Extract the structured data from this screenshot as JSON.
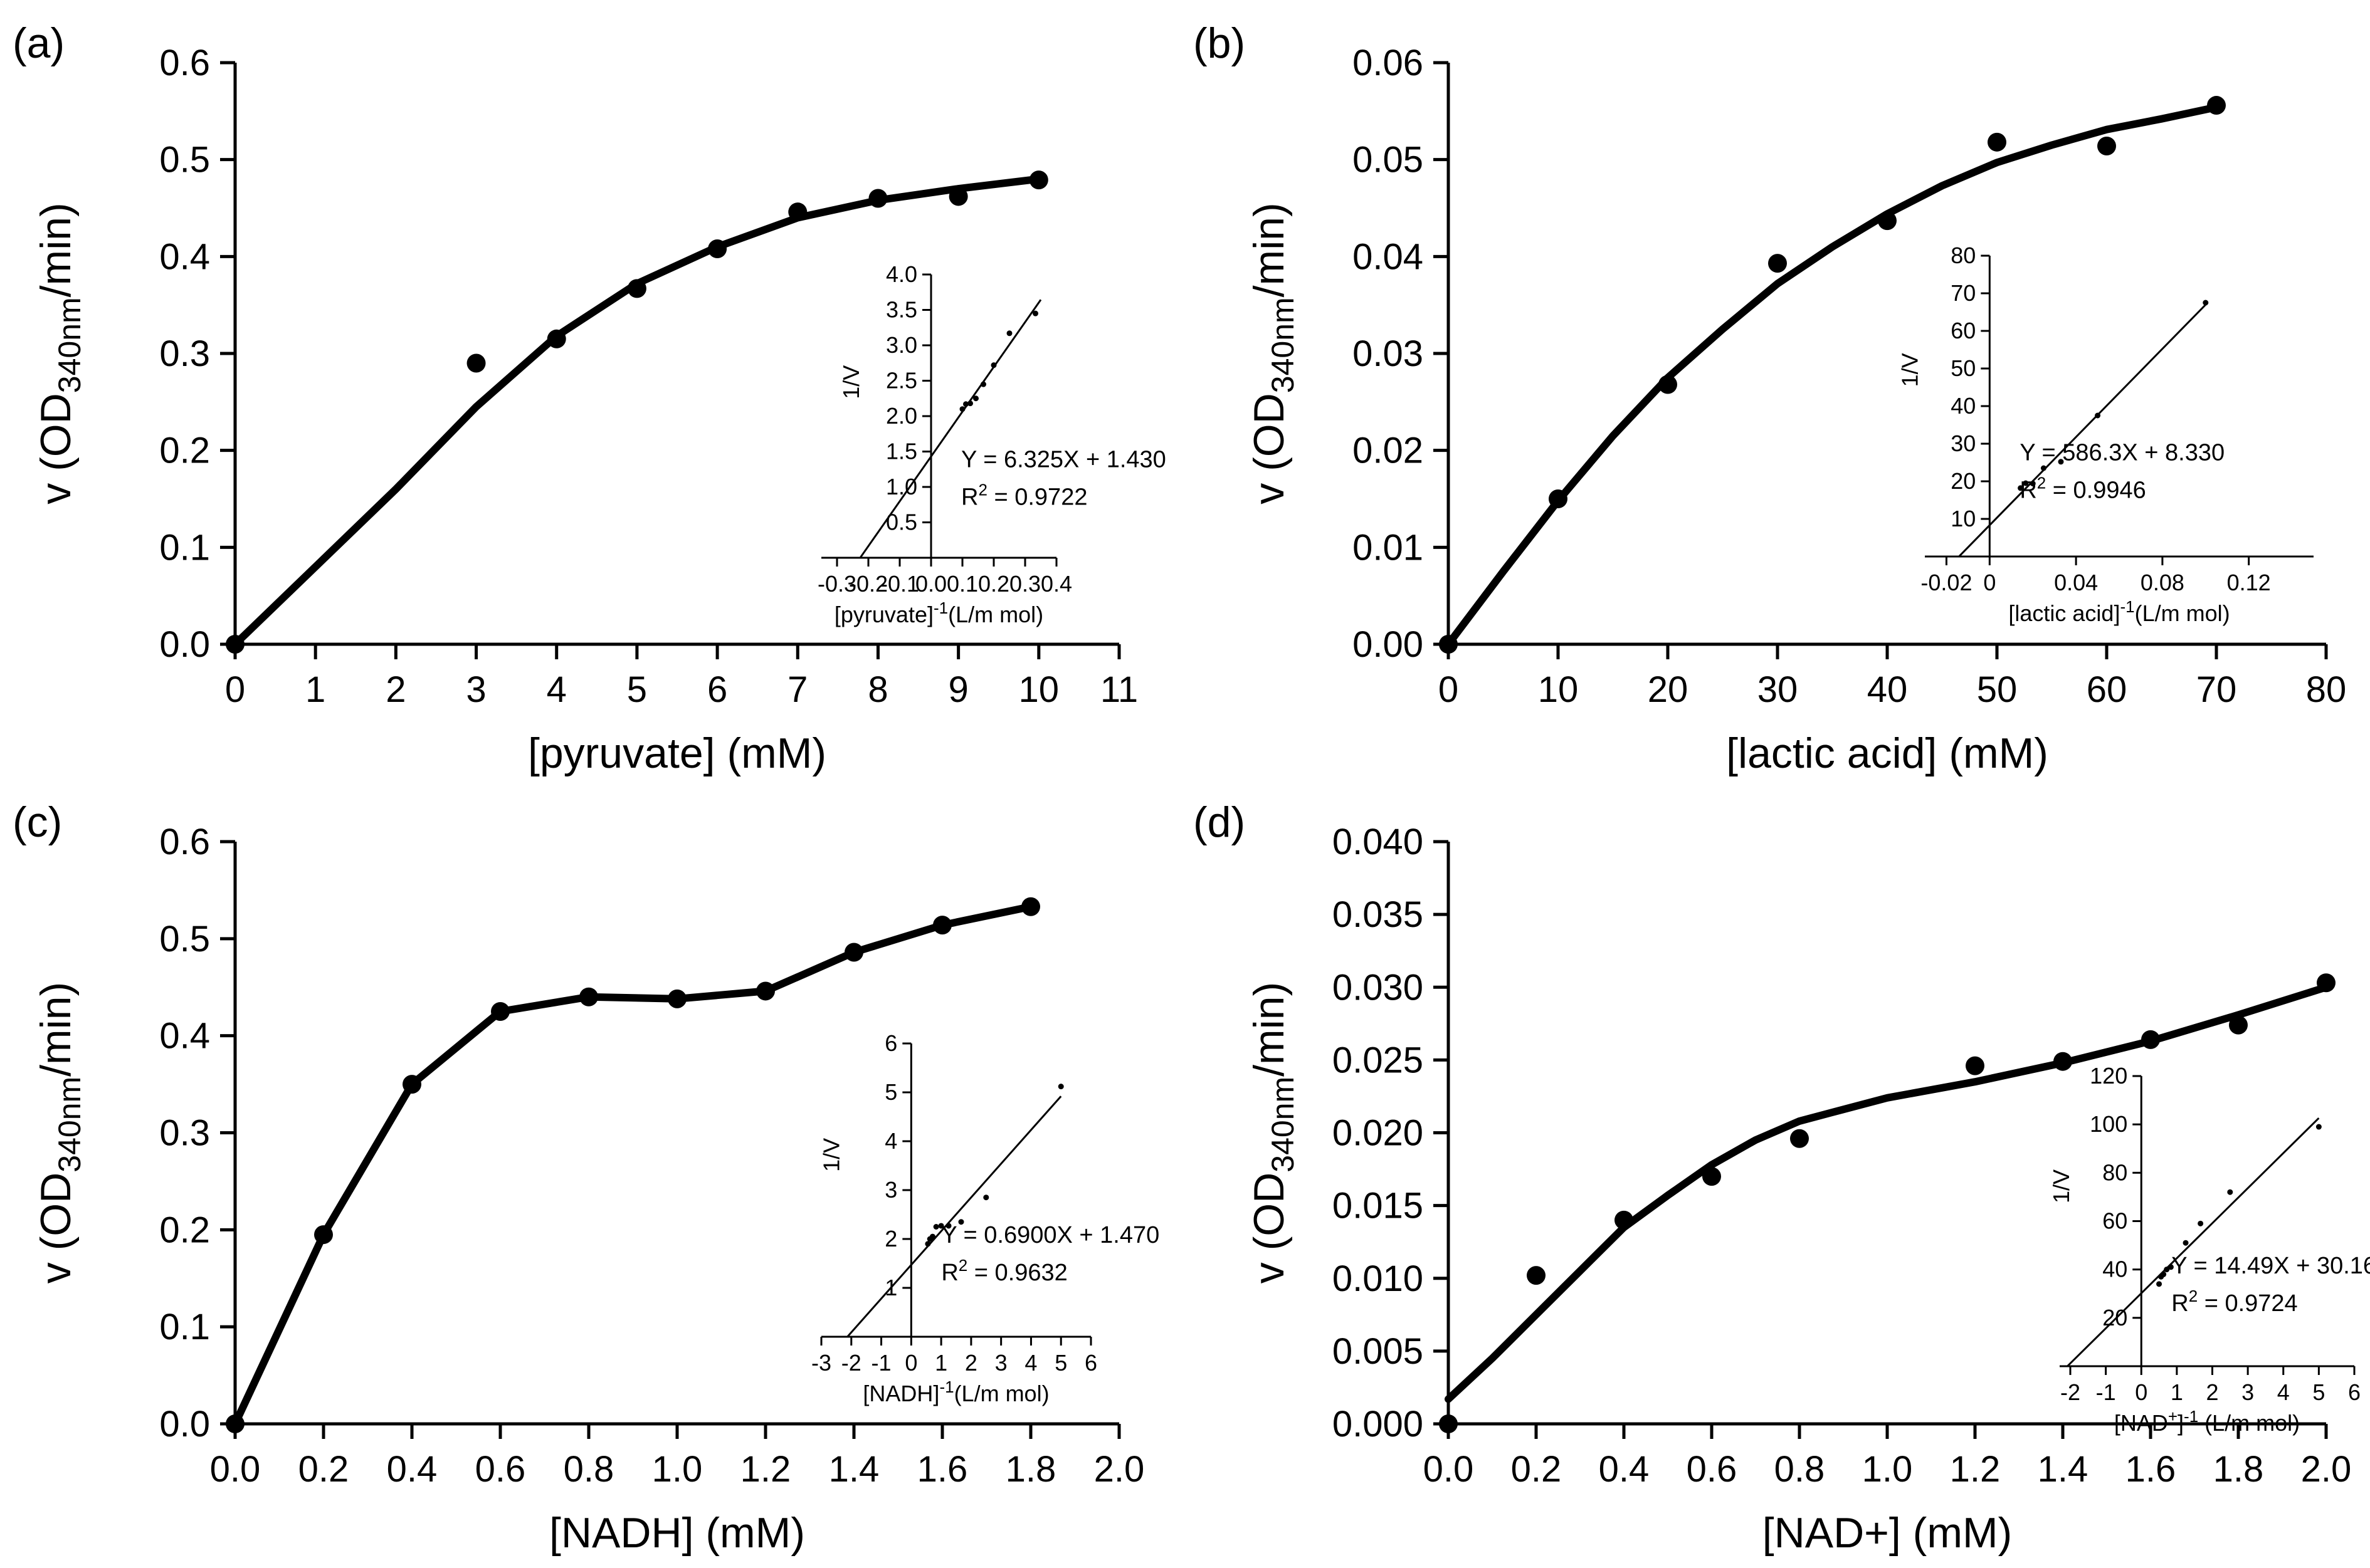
{
  "figure": {
    "colors": {
      "ink": "#000000",
      "background": "#ffffff"
    }
  },
  "chart_data": [
    {
      "id": "a",
      "panel_label": "(a)",
      "type": "scatter",
      "ylabel_main": "v (OD",
      "ylabel_sub": "340nm",
      "ylabel_tail": "/min)",
      "xlabel": "[pyruvate] (mM)",
      "xlim": [
        0,
        11
      ],
      "ylim": [
        0,
        0.6
      ],
      "xticks": [
        0,
        1,
        2,
        3,
        4,
        5,
        6,
        7,
        8,
        9,
        10,
        11
      ],
      "yticks": [
        "0.0",
        "0.1",
        "0.2",
        "0.3",
        "0.4",
        "0.5",
        "0.6"
      ],
      "points": [
        [
          0,
          0
        ],
        [
          3,
          0.29
        ],
        [
          4,
          0.315
        ],
        [
          5,
          0.367
        ],
        [
          6,
          0.408
        ],
        [
          7,
          0.446
        ],
        [
          8,
          0.46
        ],
        [
          9,
          0.462
        ],
        [
          10,
          0.479
        ]
      ],
      "fit_curve": [
        [
          0,
          0
        ],
        [
          1,
          0.08
        ],
        [
          2,
          0.16
        ],
        [
          3,
          0.245
        ],
        [
          4,
          0.318
        ],
        [
          5,
          0.372
        ],
        [
          6,
          0.41
        ],
        [
          7,
          0.44
        ],
        [
          8,
          0.458
        ],
        [
          9,
          0.47
        ],
        [
          10,
          0.48
        ]
      ],
      "inset": {
        "type": "line",
        "ylabel": "1/V",
        "xlabel_main": "[pyruvate]",
        "xlabel_sup": "-1",
        "xlabel_tail": "(L/m mol)",
        "xlim": [
          -0.35,
          0.4
        ],
        "ylim": [
          0,
          4.0
        ],
        "xticks": [
          "-0.3",
          "-0.2",
          "-0.1",
          "0.0",
          "0.1",
          "0.2",
          "0.3",
          "0.4"
        ],
        "xtick_values": [
          -0.3,
          -0.2,
          -0.1,
          0.0,
          0.1,
          0.2,
          0.3,
          0.4
        ],
        "yticks": [
          "0.5",
          "1.0",
          "1.5",
          "2.0",
          "2.5",
          "3.0",
          "3.5",
          "4.0"
        ],
        "ytick_values": [
          0.5,
          1.0,
          1.5,
          2.0,
          2.5,
          3.0,
          3.5,
          4.0
        ],
        "slope": 6.325,
        "intercept": 1.43,
        "fit_x": [
          -0.226,
          0.35
        ],
        "points": [
          [
            0.1,
            2.1
          ],
          [
            0.111,
            2.17
          ],
          [
            0.125,
            2.18
          ],
          [
            0.143,
            2.25
          ],
          [
            0.167,
            2.45
          ],
          [
            0.2,
            2.72
          ],
          [
            0.25,
            3.17
          ],
          [
            0.333,
            3.45
          ]
        ],
        "equation": "Y = 6.325X + 1.430",
        "r2_label": "R",
        "r2_sup": "2",
        "r2_value": " = 0.9722"
      }
    },
    {
      "id": "b",
      "panel_label": "(b)",
      "type": "scatter",
      "ylabel_main": "v (OD",
      "ylabel_sub": "340nm",
      "ylabel_tail": "/min)",
      "xlabel": "[lactic acid] (mM)",
      "xlim": [
        0,
        80
      ],
      "ylim": [
        0,
        0.06
      ],
      "xticks": [
        0,
        10,
        20,
        30,
        40,
        50,
        60,
        70,
        80
      ],
      "yticks": [
        "0.00",
        "0.01",
        "0.02",
        "0.03",
        "0.04",
        "0.05",
        "0.06"
      ],
      "points": [
        [
          0,
          0
        ],
        [
          10,
          0.015
        ],
        [
          20,
          0.0268
        ],
        [
          30,
          0.0393
        ],
        [
          40,
          0.0437
        ],
        [
          50,
          0.0518
        ],
        [
          60,
          0.0514
        ],
        [
          70,
          0.0556
        ]
      ],
      "fit_curve": [
        [
          0,
          0
        ],
        [
          5,
          0.0075
        ],
        [
          10,
          0.0148
        ],
        [
          15,
          0.0215
        ],
        [
          20,
          0.0275
        ],
        [
          25,
          0.0325
        ],
        [
          30,
          0.0372
        ],
        [
          35,
          0.041
        ],
        [
          40,
          0.0444
        ],
        [
          45,
          0.0473
        ],
        [
          50,
          0.0497
        ],
        [
          55,
          0.0515
        ],
        [
          60,
          0.0531
        ],
        [
          65,
          0.0542
        ],
        [
          70,
          0.0554
        ]
      ],
      "inset": {
        "type": "line",
        "ylabel": "1/V",
        "xlabel_main": "[lactic acid]",
        "xlabel_sup": "-1",
        "xlabel_tail": "(L/m mol)",
        "xlim": [
          -0.03,
          0.15
        ],
        "ylim": [
          0,
          80
        ],
        "xticks": [
          "-0.02",
          "0",
          "0.04",
          "0.08",
          "0.12"
        ],
        "xtick_values": [
          -0.02,
          0,
          0.04,
          0.08,
          0.12
        ],
        "yticks": [
          "10",
          "20",
          "30",
          "40",
          "50",
          "60",
          "70",
          "80"
        ],
        "ytick_values": [
          10,
          20,
          30,
          40,
          50,
          60,
          70,
          80
        ],
        "slope": 586.3,
        "intercept": 8.33,
        "fit_x": [
          -0.014,
          0.1
        ],
        "points": [
          [
            0.0143,
            18.2
          ],
          [
            0.0167,
            19.5
          ],
          [
            0.02,
            19.4
          ],
          [
            0.025,
            23.5
          ],
          [
            0.033,
            25.2
          ],
          [
            0.05,
            37.5
          ],
          [
            0.1,
            67.5
          ]
        ],
        "equation": "Y = 586.3X + 8.330",
        "r2_label": "R",
        "r2_sup": "2",
        "r2_value": " = 0.9946"
      }
    },
    {
      "id": "c",
      "panel_label": "(c)",
      "type": "line",
      "ylabel_main": "v (OD",
      "ylabel_sub": "340nm",
      "ylabel_tail": "/min)",
      "xlabel": "[NADH] (mM)",
      "xlim": [
        0,
        2.0
      ],
      "ylim": [
        0,
        0.6
      ],
      "xticks": [
        "0.0",
        "0.2",
        "0.4",
        "0.6",
        "0.8",
        "1.0",
        "1.2",
        "1.4",
        "1.6",
        "1.8",
        "2.0"
      ],
      "yticks": [
        "0.0",
        "0.1",
        "0.2",
        "0.3",
        "0.4",
        "0.5",
        "0.6"
      ],
      "points": [
        [
          0,
          0
        ],
        [
          0.2,
          0.195
        ],
        [
          0.4,
          0.35
        ],
        [
          0.6,
          0.425
        ],
        [
          0.8,
          0.44
        ],
        [
          1.0,
          0.438
        ],
        [
          1.2,
          0.446
        ],
        [
          1.4,
          0.486
        ],
        [
          1.6,
          0.514
        ],
        [
          1.8,
          0.533
        ]
      ],
      "fit_curve": [
        [
          0,
          0
        ],
        [
          0.2,
          0.195
        ],
        [
          0.4,
          0.35
        ],
        [
          0.6,
          0.425
        ],
        [
          0.8,
          0.44
        ],
        [
          1.0,
          0.438
        ],
        [
          1.2,
          0.446
        ],
        [
          1.4,
          0.486
        ],
        [
          1.6,
          0.514
        ],
        [
          1.8,
          0.533
        ]
      ],
      "inset": {
        "type": "line",
        "ylabel": "1/V",
        "xlabel_main": "[NADH]",
        "xlabel_sup": "-1",
        "xlabel_tail": "(L/m mol)",
        "xlim": [
          -3,
          6
        ],
        "ylim": [
          0,
          6
        ],
        "xticks": [
          "-3",
          "-2",
          "-1",
          "0",
          "1",
          "2",
          "3",
          "4",
          "5",
          "6"
        ],
        "xtick_values": [
          -3,
          -2,
          -1,
          0,
          1,
          2,
          3,
          4,
          5,
          6
        ],
        "yticks": [
          "1",
          "2",
          "3",
          "4",
          "5",
          "6"
        ],
        "ytick_values": [
          1,
          2,
          3,
          4,
          5,
          6
        ],
        "slope": 0.69,
        "intercept": 1.47,
        "fit_x": [
          -2.13,
          5
        ],
        "points": [
          [
            0.556,
            1.9
          ],
          [
            0.625,
            2.0
          ],
          [
            0.714,
            2.05
          ],
          [
            0.833,
            2.25
          ],
          [
            1.0,
            2.27
          ],
          [
            1.25,
            2.27
          ],
          [
            1.667,
            2.35
          ],
          [
            2.5,
            2.85
          ],
          [
            5,
            5.12
          ]
        ],
        "equation": "Y = 0.6900X + 1.470",
        "r2_label": "R",
        "r2_sup": "2",
        "r2_value": " = 0.9632"
      }
    },
    {
      "id": "d",
      "panel_label": "(d)",
      "type": "scatter",
      "ylabel_main": "v (OD",
      "ylabel_sub": "340nm",
      "ylabel_tail": "/min)",
      "xlabel": "[NAD+] (mM)",
      "xlim": [
        0,
        2.0
      ],
      "ylim": [
        0,
        0.04
      ],
      "xticks": [
        "0.0",
        "0.2",
        "0.4",
        "0.6",
        "0.8",
        "1.0",
        "1.2",
        "1.4",
        "1.6",
        "1.8",
        "2.0"
      ],
      "yticks": [
        "0.000",
        "0.005",
        "0.010",
        "0.015",
        "0.020",
        "0.025",
        "0.030",
        "0.035",
        "0.040"
      ],
      "points": [
        [
          0,
          0
        ],
        [
          0.2,
          0.0102
        ],
        [
          0.4,
          0.014
        ],
        [
          0.6,
          0.017
        ],
        [
          0.8,
          0.0196
        ],
        [
          1.2,
          0.0246
        ],
        [
          1.4,
          0.0249
        ],
        [
          1.6,
          0.0264
        ],
        [
          1.8,
          0.0274
        ],
        [
          2.0,
          0.0303
        ]
      ],
      "fit_curve": [
        [
          0,
          0.0017
        ],
        [
          0.1,
          0.0045
        ],
        [
          0.2,
          0.0075
        ],
        [
          0.3,
          0.0105
        ],
        [
          0.4,
          0.0135
        ],
        [
          0.5,
          0.0157
        ],
        [
          0.6,
          0.0178
        ],
        [
          0.7,
          0.0195
        ],
        [
          0.8,
          0.0208
        ],
        [
          0.9,
          0.0216
        ],
        [
          1.0,
          0.0224
        ],
        [
          1.2,
          0.0235
        ],
        [
          1.4,
          0.0248
        ],
        [
          1.6,
          0.0263
        ],
        [
          1.8,
          0.0281
        ],
        [
          2.0,
          0.03
        ]
      ],
      "inset": {
        "type": "line",
        "ylabel": "1/V",
        "xlabel_main": "[NAD",
        "xlabel_sup": "+",
        "xlabel_mid": "]",
        "xlabel_sup2": "-1",
        "xlabel_tail": " (L/m mol)",
        "xlim": [
          -2.3,
          6
        ],
        "ylim": [
          0,
          120
        ],
        "xticks": [
          "-2",
          "-1",
          "0",
          "1",
          "2",
          "3",
          "4",
          "5",
          "6"
        ],
        "xtick_values": [
          -2,
          -1,
          0,
          1,
          2,
          3,
          4,
          5,
          6
        ],
        "yticks": [
          "20",
          "40",
          "60",
          "80",
          "100",
          "120"
        ],
        "ytick_values": [
          20,
          40,
          60,
          80,
          100,
          120
        ],
        "slope": 14.49,
        "intercept": 30.16,
        "fit_x": [
          -2.08,
          5
        ],
        "points": [
          [
            0.5,
            34
          ],
          [
            0.556,
            37
          ],
          [
            0.625,
            38
          ],
          [
            0.714,
            40
          ],
          [
            0.833,
            41
          ],
          [
            1.25,
            51
          ],
          [
            1.667,
            59
          ],
          [
            2.5,
            72
          ],
          [
            5,
            99
          ]
        ],
        "equation": "Y = 14.49X + 30.16",
        "r2_label": "R",
        "r2_sup": "2",
        "r2_value": " = 0.9724"
      }
    }
  ]
}
